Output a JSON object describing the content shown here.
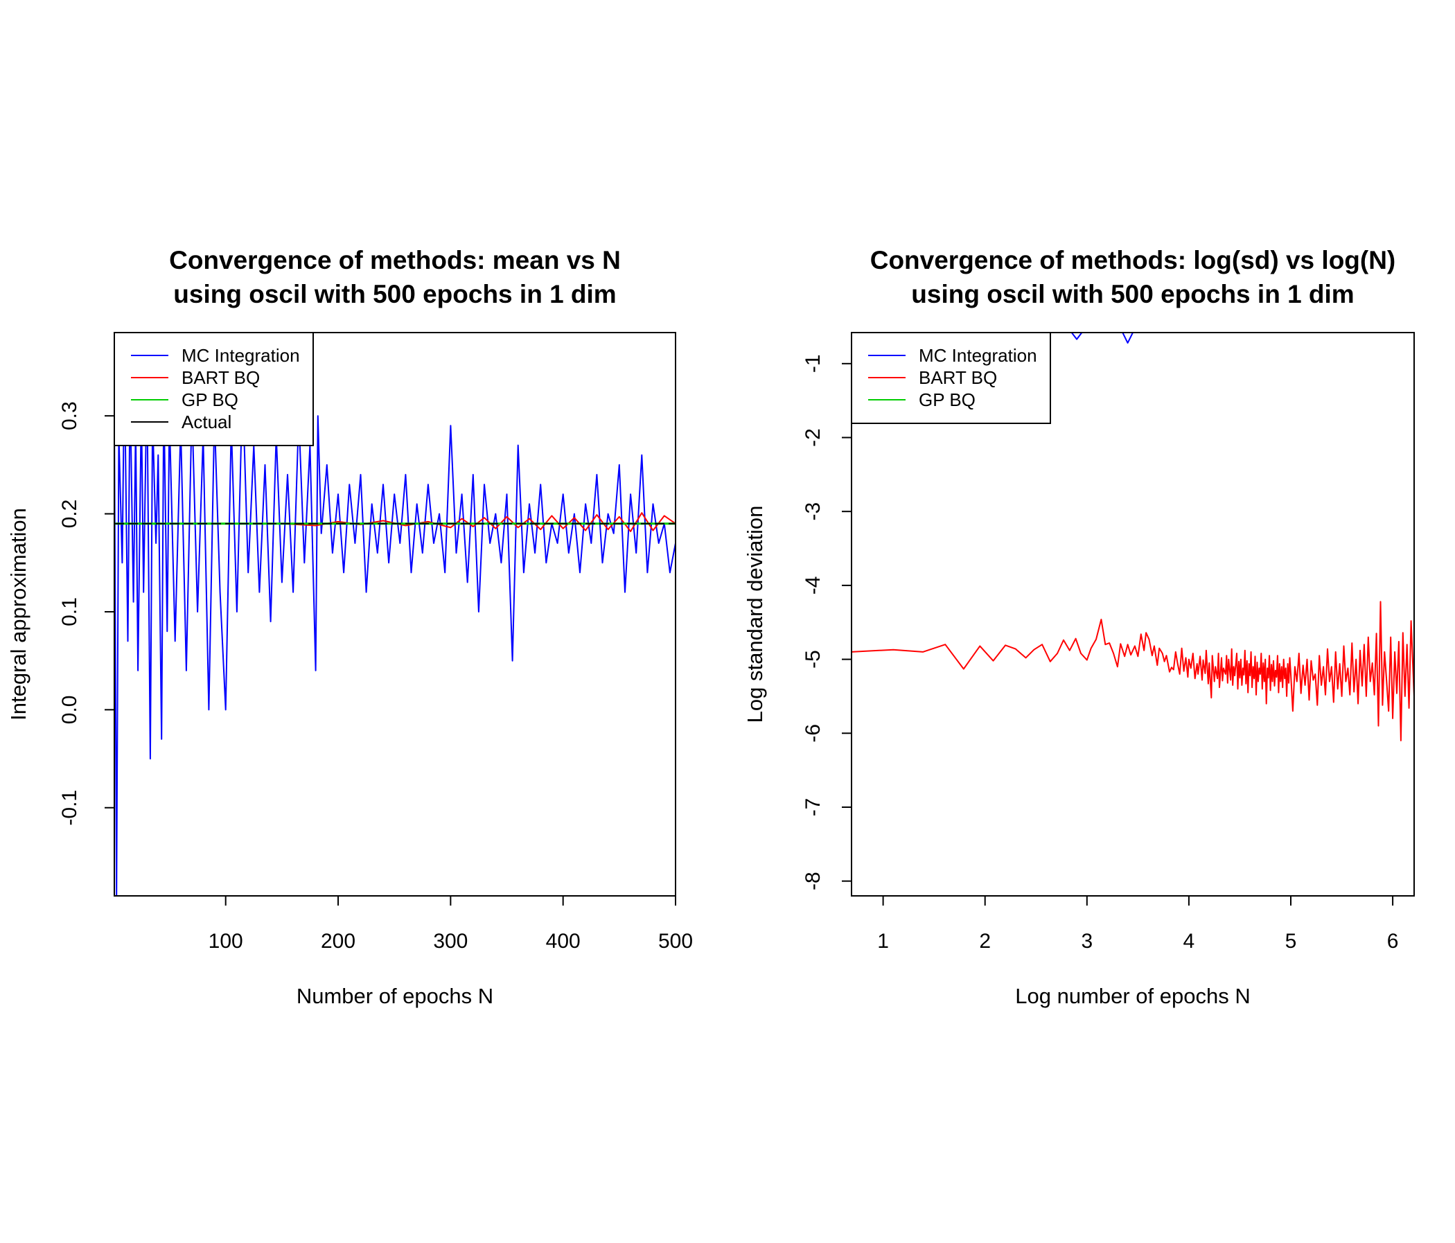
{
  "chart_data": [
    {
      "type": "line",
      "title": "Convergence of methods: mean vs N",
      "subtitle": "using oscil with 500 epochs in 1 dim",
      "xlabel": "Number of epochs N",
      "ylabel": "Integral approximation",
      "xlim": [
        1,
        500
      ],
      "ylim": [
        -0.19,
        0.385
      ],
      "x_ticks": [
        100,
        200,
        300,
        400,
        500
      ],
      "x_tick_labels": [
        "100",
        "200",
        "300",
        "400",
        "500"
      ],
      "y_ticks": [
        -0.1,
        0.0,
        0.1,
        0.2,
        0.3
      ],
      "y_tick_labels": [
        "-0.1",
        "0.0",
        "0.1",
        "0.2",
        "0.3"
      ],
      "legend_position": "top-left",
      "legend": [
        {
          "label": "MC Integration",
          "color": "#0000ff"
        },
        {
          "label": "BART BQ",
          "color": "#ff0000"
        },
        {
          "label": "GP BQ",
          "color": "#00cc00"
        },
        {
          "label": "Actual",
          "color": "#000000"
        }
      ],
      "series": [
        {
          "name": "MC Integration",
          "color": "#0000ff",
          "x": [
            1,
            3,
            5,
            8,
            10,
            13,
            15,
            18,
            20,
            22,
            25,
            27,
            30,
            33,
            35,
            38,
            40,
            43,
            45,
            48,
            50,
            55,
            60,
            65,
            70,
            75,
            80,
            85,
            90,
            95,
            100,
            105,
            110,
            115,
            120,
            125,
            130,
            135,
            140,
            145,
            150,
            155,
            160,
            165,
            170,
            175,
            180,
            182,
            185,
            190,
            195,
            200,
            205,
            210,
            215,
            220,
            225,
            230,
            235,
            240,
            245,
            250,
            255,
            260,
            265,
            270,
            275,
            280,
            285,
            290,
            295,
            300,
            305,
            310,
            315,
            320,
            325,
            330,
            335,
            340,
            345,
            350,
            355,
            360,
            365,
            370,
            375,
            380,
            385,
            390,
            395,
            400,
            405,
            410,
            415,
            420,
            425,
            430,
            435,
            440,
            445,
            450,
            455,
            460,
            465,
            470,
            475,
            480,
            485,
            490,
            495,
            500
          ],
          "y": [
            0.3,
            -0.19,
            0.28,
            0.15,
            0.35,
            0.07,
            0.33,
            0.11,
            0.29,
            0.04,
            0.31,
            0.12,
            0.34,
            -0.05,
            0.3,
            0.17,
            0.26,
            -0.03,
            0.32,
            0.08,
            0.3,
            0.07,
            0.29,
            0.04,
            0.31,
            0.1,
            0.28,
            0.0,
            0.3,
            0.12,
            0.0,
            0.29,
            0.1,
            0.33,
            0.14,
            0.27,
            0.12,
            0.25,
            0.09,
            0.28,
            0.13,
            0.24,
            0.12,
            0.3,
            0.15,
            0.27,
            0.04,
            0.3,
            0.18,
            0.25,
            0.16,
            0.22,
            0.14,
            0.23,
            0.17,
            0.24,
            0.12,
            0.21,
            0.16,
            0.23,
            0.15,
            0.22,
            0.17,
            0.24,
            0.14,
            0.21,
            0.16,
            0.23,
            0.17,
            0.2,
            0.14,
            0.29,
            0.16,
            0.22,
            0.13,
            0.24,
            0.1,
            0.23,
            0.17,
            0.2,
            0.15,
            0.22,
            0.05,
            0.27,
            0.14,
            0.21,
            0.16,
            0.23,
            0.15,
            0.19,
            0.17,
            0.22,
            0.16,
            0.2,
            0.14,
            0.21,
            0.17,
            0.24,
            0.15,
            0.2,
            0.18,
            0.25,
            0.12,
            0.22,
            0.16,
            0.26,
            0.14,
            0.21,
            0.17,
            0.19,
            0.14,
            0.17
          ]
        },
        {
          "name": "BART BQ",
          "color": "#ff0000",
          "x": [
            1,
            50,
            100,
            150,
            180,
            200,
            220,
            240,
            260,
            280,
            300,
            310,
            320,
            330,
            340,
            350,
            360,
            370,
            380,
            390,
            400,
            410,
            420,
            430,
            440,
            450,
            460,
            470,
            480,
            490,
            500
          ],
          "y": [
            0.19,
            0.19,
            0.19,
            0.19,
            0.188,
            0.192,
            0.189,
            0.193,
            0.188,
            0.192,
            0.186,
            0.195,
            0.187,
            0.196,
            0.185,
            0.197,
            0.186,
            0.195,
            0.184,
            0.198,
            0.185,
            0.196,
            0.183,
            0.199,
            0.184,
            0.197,
            0.182,
            0.201,
            0.183,
            0.198,
            0.19
          ]
        },
        {
          "name": "GP BQ",
          "color": "#00cc00",
          "x": [
            1,
            500
          ],
          "y": [
            0.19,
            0.19
          ]
        },
        {
          "name": "Actual",
          "color": "#000000",
          "x": [
            1,
            500
          ],
          "y": [
            0.19,
            0.19
          ]
        }
      ]
    },
    {
      "type": "line",
      "title": "Convergence of methods: log(sd) vs log(N)",
      "subtitle": "using oscil with 500 epochs in 1 dim",
      "xlabel": "Log number of epochs N",
      "ylabel": "Log standard deviation",
      "xlim": [
        0.69,
        6.21
      ],
      "ylim": [
        -8.2,
        -0.58
      ],
      "x_ticks": [
        1,
        2,
        3,
        4,
        5,
        6
      ],
      "x_tick_labels": [
        "1",
        "2",
        "3",
        "4",
        "5",
        "6"
      ],
      "y_ticks": [
        -8,
        -7,
        -6,
        -5,
        -4,
        -3,
        -2,
        -1
      ],
      "y_tick_labels": [
        "-8",
        "-7",
        "-6",
        "-5",
        "-4",
        "-3",
        "-2",
        "-1"
      ],
      "legend_position": "top-left",
      "legend": [
        {
          "label": "MC Integration",
          "color": "#0000ff"
        },
        {
          "label": "BART BQ",
          "color": "#ff0000"
        },
        {
          "label": "GP BQ",
          "color": "#00cc00"
        }
      ],
      "series": [
        {
          "name": "MC Integration",
          "color": "#0000ff",
          "x": [
            2.85,
            2.9,
            2.95,
            3.35,
            3.4,
            3.45
          ],
          "y": [
            -0.58,
            -0.67,
            -0.58,
            -0.58,
            -0.72,
            -0.58
          ]
        },
        {
          "name": "BART BQ",
          "color": "#ff0000",
          "x": [
            0.69,
            1.1,
            1.39,
            1.61,
            1.79,
            1.95,
            2.08,
            2.2,
            2.3,
            2.4,
            2.48,
            2.56,
            2.64,
            2.71,
            2.77,
            2.83,
            2.89,
            2.94,
            3.0,
            3.04,
            3.09,
            3.14,
            3.18,
            3.22,
            3.26,
            3.3,
            3.33,
            3.37,
            3.4,
            3.43,
            3.47,
            3.5,
            3.53,
            3.56,
            3.58,
            3.61,
            3.64,
            3.66,
            3.69,
            3.71,
            3.74,
            3.76,
            3.78,
            3.81,
            3.83,
            3.85,
            3.87,
            3.89,
            3.91,
            3.93,
            3.95,
            3.97,
            3.99,
            4.0,
            4.02,
            4.04,
            4.06,
            4.08,
            4.09,
            4.11,
            4.13,
            4.14,
            4.16,
            4.17,
            4.19,
            4.2,
            4.22,
            4.23,
            4.25,
            4.26,
            4.28,
            4.29,
            4.3,
            4.32,
            4.33,
            4.34,
            4.36,
            4.37,
            4.38,
            4.39,
            4.41,
            4.42,
            4.43,
            4.44,
            4.45,
            4.47,
            4.48,
            4.49,
            4.5,
            4.51,
            4.52,
            4.53,
            4.54,
            4.55,
            4.56,
            4.57,
            4.58,
            4.59,
            4.6,
            4.61,
            4.62,
            4.63,
            4.64,
            4.65,
            4.66,
            4.67,
            4.68,
            4.69,
            4.7,
            4.71,
            4.72,
            4.73,
            4.74,
            4.75,
            4.76,
            4.77,
            4.78,
            4.79,
            4.8,
            4.81,
            4.82,
            4.83,
            4.84,
            4.85,
            4.86,
            4.87,
            4.88,
            4.89,
            4.9,
            4.91,
            4.92,
            4.93,
            4.94,
            4.95,
            4.96,
            4.97,
            4.98,
            4.99,
            5.0,
            5.02,
            5.04,
            5.06,
            5.08,
            5.1,
            5.12,
            5.14,
            5.16,
            5.18,
            5.2,
            5.22,
            5.24,
            5.26,
            5.28,
            5.3,
            5.32,
            5.34,
            5.36,
            5.38,
            5.4,
            5.42,
            5.44,
            5.46,
            5.48,
            5.5,
            5.52,
            5.54,
            5.56,
            5.58,
            5.6,
            5.62,
            5.64,
            5.66,
            5.68,
            5.7,
            5.72,
            5.74,
            5.76,
            5.78,
            5.8,
            5.82,
            5.84,
            5.86,
            5.88,
            5.9,
            5.92,
            5.94,
            5.96,
            5.98,
            6.0,
            6.02,
            6.04,
            6.06,
            6.08,
            6.1,
            6.12,
            6.14,
            6.16,
            6.18,
            6.21
          ],
          "y": [
            -4.9,
            -4.87,
            -4.9,
            -4.8,
            -5.13,
            -4.82,
            -5.02,
            -4.81,
            -4.86,
            -4.98,
            -4.87,
            -4.8,
            -5.03,
            -4.92,
            -4.74,
            -4.88,
            -4.72,
            -4.92,
            -5.01,
            -4.85,
            -4.73,
            -4.46,
            -4.8,
            -4.78,
            -4.92,
            -5.1,
            -4.79,
            -4.96,
            -4.8,
            -4.94,
            -4.82,
            -4.96,
            -4.66,
            -4.88,
            -4.64,
            -4.73,
            -4.95,
            -4.82,
            -5.08,
            -4.85,
            -4.92,
            -5.03,
            -4.95,
            -5.17,
            -5.11,
            -5.14,
            -4.9,
            -5.06,
            -5.2,
            -4.85,
            -5.16,
            -4.98,
            -5.24,
            -5.0,
            -5.12,
            -4.92,
            -5.26,
            -5.06,
            -5.2,
            -4.96,
            -5.28,
            -5.01,
            -5.19,
            -4.88,
            -5.33,
            -5.05,
            -5.52,
            -4.95,
            -5.3,
            -5.1,
            -5.26,
            -4.92,
            -5.38,
            -4.98,
            -5.29,
            -5.12,
            -5.2,
            -4.95,
            -5.32,
            -5.0,
            -5.28,
            -4.86,
            -5.35,
            -5.1,
            -5.22,
            -4.92,
            -5.4,
            -5.03,
            -5.25,
            -5.0,
            -5.35,
            -5.12,
            -5.21,
            -4.88,
            -5.33,
            -5.02,
            -5.45,
            -5.06,
            -5.22,
            -4.9,
            -5.38,
            -5.1,
            -5.26,
            -4.96,
            -5.48,
            -5.04,
            -5.3,
            -5.12,
            -5.2,
            -4.92,
            -5.4,
            -5.05,
            -5.3,
            -5.0,
            -5.6,
            -5.12,
            -5.25,
            -4.95,
            -5.42,
            -5.07,
            -5.3,
            -5.02,
            -5.36,
            -5.15,
            -5.24,
            -4.95,
            -5.45,
            -5.06,
            -5.3,
            -5.1,
            -5.38,
            -5.0,
            -5.26,
            -5.12,
            -5.5,
            -5.06,
            -5.32,
            -4.98,
            -5.2,
            -5.7,
            -5.1,
            -5.3,
            -4.92,
            -5.46,
            -5.08,
            -5.35,
            -5.0,
            -5.55,
            -5.02,
            -5.28,
            -5.2,
            -5.62,
            -4.95,
            -5.35,
            -5.1,
            -5.48,
            -4.86,
            -5.3,
            -5.1,
            -5.58,
            -4.9,
            -5.4,
            -5.06,
            -5.5,
            -4.82,
            -5.3,
            -5.12,
            -5.48,
            -4.78,
            -5.44,
            -5.0,
            -5.6,
            -4.88,
            -5.36,
            -4.8,
            -5.5,
            -4.7,
            -5.3,
            -5.05,
            -5.48,
            -4.65,
            -5.9,
            -4.22,
            -5.62,
            -4.9,
            -5.3,
            -5.7,
            -4.7,
            -5.8,
            -4.9,
            -5.46,
            -4.76,
            -6.1,
            -4.64,
            -5.5,
            -4.8,
            -5.66,
            -4.48,
            -5.5
          ]
        },
        {
          "name": "GP BQ",
          "color": "#00cc00",
          "x": [],
          "y": []
        }
      ]
    }
  ]
}
